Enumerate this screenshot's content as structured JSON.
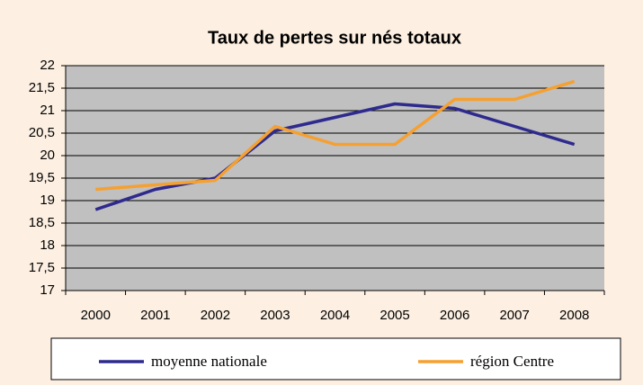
{
  "chart_data": {
    "type": "line",
    "title": "Taux de pertes sur nés totaux",
    "categories": [
      "2000",
      "2001",
      "2002",
      "2003",
      "2004",
      "2005",
      "2006",
      "2007",
      "2008"
    ],
    "series": [
      {
        "name": "moyenne nationale",
        "color": "#2e2a8e",
        "values": [
          18.8,
          19.25,
          19.5,
          20.55,
          20.85,
          21.15,
          21.05,
          20.65,
          20.25
        ]
      },
      {
        "name": "région Centre",
        "color": "#f5a030",
        "values": [
          19.25,
          19.35,
          19.45,
          20.65,
          20.25,
          20.25,
          21.25,
          21.25,
          21.65
        ]
      }
    ],
    "ylim": [
      17,
      22
    ],
    "yticks": [
      17,
      {
        "value": 17.5,
        "label": "17,5"
      },
      18,
      {
        "value": 18.5,
        "label": "18,5"
      },
      19,
      {
        "value": 19.5,
        "label": "19,5"
      },
      20,
      {
        "value": 20.5,
        "label": "20,5"
      },
      21,
      {
        "value": 21.5,
        "label": "21,5"
      },
      22
    ],
    "grid": true,
    "legend": "bottom"
  }
}
